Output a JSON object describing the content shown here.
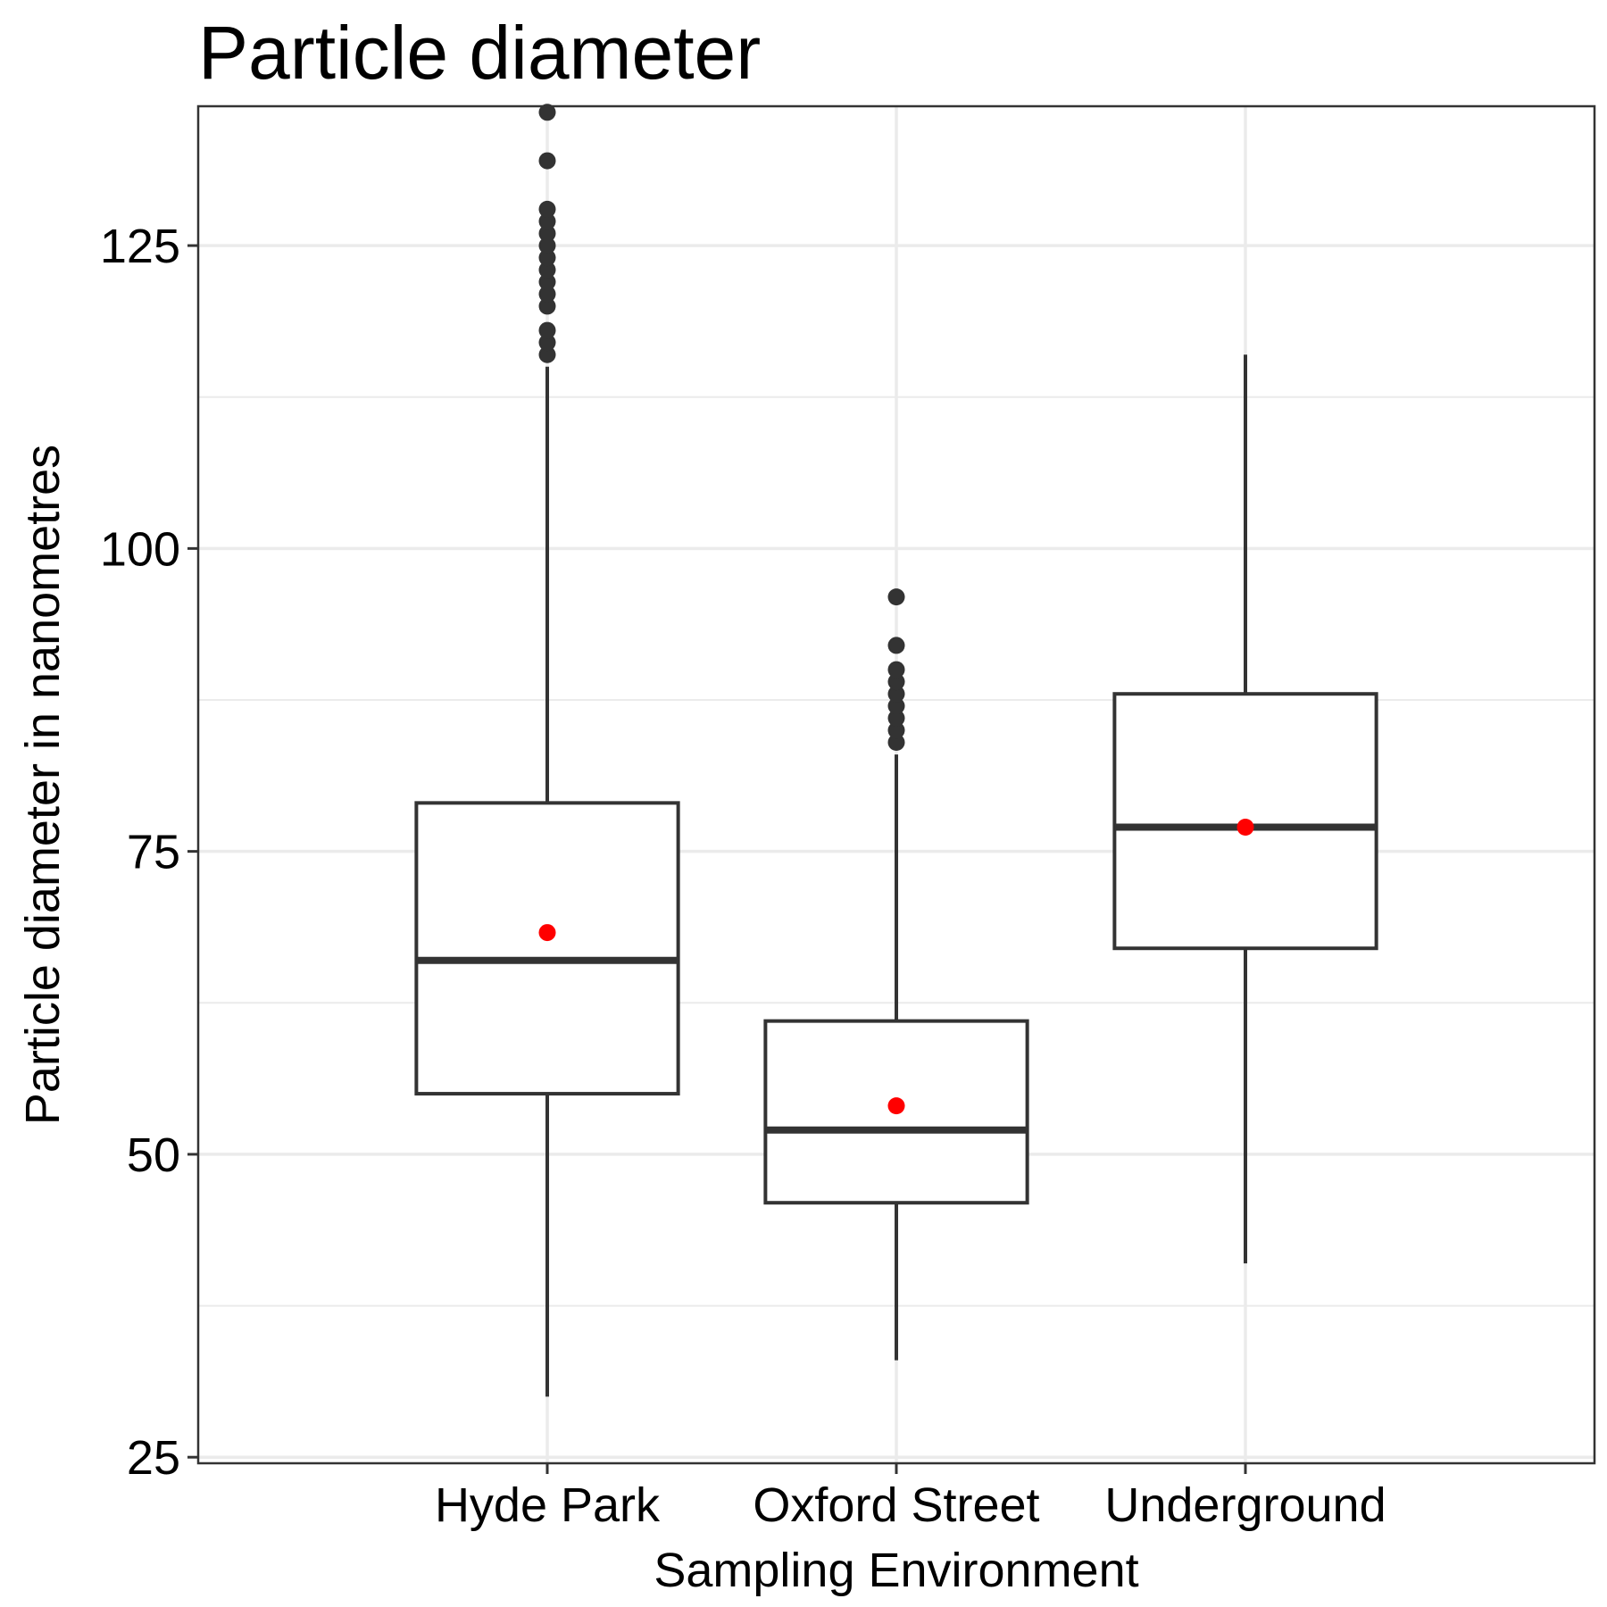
{
  "chart_data": {
    "type": "box",
    "title": "Particle diameter",
    "xlabel": "Sampling Environment",
    "ylabel": "Particle diameter in nanometres",
    "ylim": [
      24.5,
      136.5
    ],
    "yticks": [
      25,
      50,
      75,
      100,
      125
    ],
    "grid": true,
    "legend": "none",
    "colors": {
      "box_stroke": "#333333",
      "mean_point": "#ff0000",
      "outlier": "#333333",
      "grid": "#ebebeb",
      "panel_border": "#333333"
    },
    "categories": [
      "Hyde Park",
      "Oxford Street",
      "Underground"
    ],
    "boxes": [
      {
        "category": "Hyde Park",
        "whisker_low": 30,
        "q1": 55,
        "median": 66,
        "q3": 79,
        "whisker_high": 115,
        "mean": 68.3,
        "outliers": [
          116,
          117,
          118,
          120,
          121,
          122,
          123,
          124,
          125,
          126,
          127,
          128,
          132,
          136
        ]
      },
      {
        "category": "Oxford Street",
        "whisker_low": 33,
        "q1": 46,
        "median": 52,
        "q3": 61,
        "whisker_high": 83,
        "mean": 54,
        "outliers": [
          84,
          85,
          86,
          87,
          88,
          89,
          90,
          92,
          96
        ]
      },
      {
        "category": "Underground",
        "whisker_low": 41,
        "q1": 67,
        "median": 77,
        "q3": 88,
        "whisker_high": 116,
        "mean": 77,
        "outliers": []
      }
    ]
  }
}
